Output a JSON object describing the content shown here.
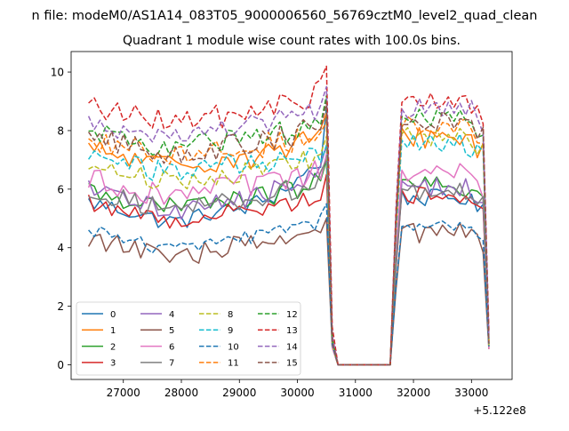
{
  "chart_data": {
    "type": "line",
    "suptitle": "n file: modeM0/AS1A14_083T05_9000006560_56769cztM0_level2_quad_clean",
    "title": "Quadrant 1 module wise count rates with 100.0s bins.",
    "xlabel": "",
    "ylabel": "",
    "x_offset_label": "+5.122e8",
    "xlim": [
      26100,
      33700
    ],
    "ylim": [
      -0.5,
      10.7
    ],
    "xticks": [
      27000,
      28000,
      29000,
      30000,
      31000,
      32000,
      33000
    ],
    "xtick_labels": [
      "27000",
      "28000",
      "29000",
      "30000",
      "31000",
      "32000",
      "33000"
    ],
    "yticks": [
      0,
      2,
      4,
      6,
      8,
      10
    ],
    "ytick_labels": [
      "0",
      "2",
      "4",
      "6",
      "8",
      "10"
    ],
    "legend_position": "lower-left",
    "legend_columns": 4,
    "x_start": 26400,
    "x_step": 100,
    "series": [
      {
        "name": "0",
        "color": "#1f77b4",
        "dash": "solid",
        "base1": 5.2,
        "base2": 5.4,
        "amp": 0.3,
        "dip": 0.3,
        "rise": 8.8,
        "end": 0.8
      },
      {
        "name": "1",
        "color": "#ff7f0e",
        "dash": "solid",
        "base1": 7.0,
        "base2": 7.5,
        "amp": 0.4,
        "dip": 0.2,
        "rise": 8.6,
        "end": 0.6
      },
      {
        "name": "2",
        "color": "#2ca02c",
        "dash": "solid",
        "base1": 5.6,
        "base2": 5.8,
        "amp": 0.35,
        "dip": 0.25,
        "rise": 7.0,
        "end": 0.9
      },
      {
        "name": "3",
        "color": "#d62728",
        "dash": "solid",
        "base1": 5.2,
        "base2": 5.5,
        "amp": 0.3,
        "dip": 0.3,
        "rise": 6.5,
        "end": 0.8
      },
      {
        "name": "4",
        "color": "#9467bd",
        "dash": "solid",
        "base1": 5.6,
        "base2": 5.8,
        "amp": 0.35,
        "dip": 0.3,
        "rise": 7.5,
        "end": 0.7
      },
      {
        "name": "5",
        "color": "#8c564b",
        "dash": "solid",
        "base1": 4.0,
        "base2": 4.2,
        "amp": 0.35,
        "dip": 0.4,
        "rise": 5.0,
        "end": 0.6
      },
      {
        "name": "6",
        "color": "#e377c2",
        "dash": "solid",
        "base1": 6.0,
        "base2": 6.2,
        "amp": 0.4,
        "dip": 0.2,
        "rise": 7.2,
        "end": 0.6
      },
      {
        "name": "7",
        "color": "#7f7f7f",
        "dash": "solid",
        "base1": 5.6,
        "base2": 5.6,
        "amp": 0.35,
        "dip": 0.3,
        "rise": 7.0,
        "end": 0.7
      },
      {
        "name": "8",
        "color": "#bcbd22",
        "dash": "dashed",
        "base1": 6.5,
        "base2": 7.5,
        "amp": 0.35,
        "dip": 0.2,
        "rise": 7.8,
        "end": 0.7
      },
      {
        "name": "9",
        "color": "#17becf",
        "dash": "dashed",
        "base1": 6.8,
        "base2": 7.3,
        "amp": 0.4,
        "dip": 0.2,
        "rise": 7.5,
        "end": 0.8
      },
      {
        "name": "10",
        "color": "#1f77b4",
        "dash": "dashed",
        "base1": 4.3,
        "base2": 4.4,
        "amp": 0.25,
        "dip": 0.4,
        "rise": 5.5,
        "end": 0.7
      },
      {
        "name": "11",
        "color": "#ff7f0e",
        "dash": "dashed",
        "base1": 7.4,
        "base2": 7.8,
        "amp": 0.4,
        "dip": 0.2,
        "rise": 8.3,
        "end": 0.9
      },
      {
        "name": "12",
        "color": "#2ca02c",
        "dash": "dashed",
        "base1": 7.6,
        "base2": 8.2,
        "amp": 0.4,
        "dip": 0.2,
        "rise": 9.2,
        "end": 0.9
      },
      {
        "name": "13",
        "color": "#d62728",
        "dash": "dashed",
        "base1": 8.5,
        "base2": 8.7,
        "amp": 0.4,
        "dip": 0.2,
        "rise": 10.2,
        "end": 1.3
      },
      {
        "name": "14",
        "color": "#9467bd",
        "dash": "dashed",
        "base1": 8.0,
        "base2": 8.5,
        "amp": 0.4,
        "dip": 0.2,
        "rise": 9.5,
        "end": 1.0
      },
      {
        "name": "15",
        "color": "#8c564b",
        "dash": "dashed",
        "base1": 7.4,
        "base2": 8.0,
        "amp": 0.4,
        "dip": 0.2,
        "rise": 9.0,
        "end": 0.8
      }
    ]
  }
}
